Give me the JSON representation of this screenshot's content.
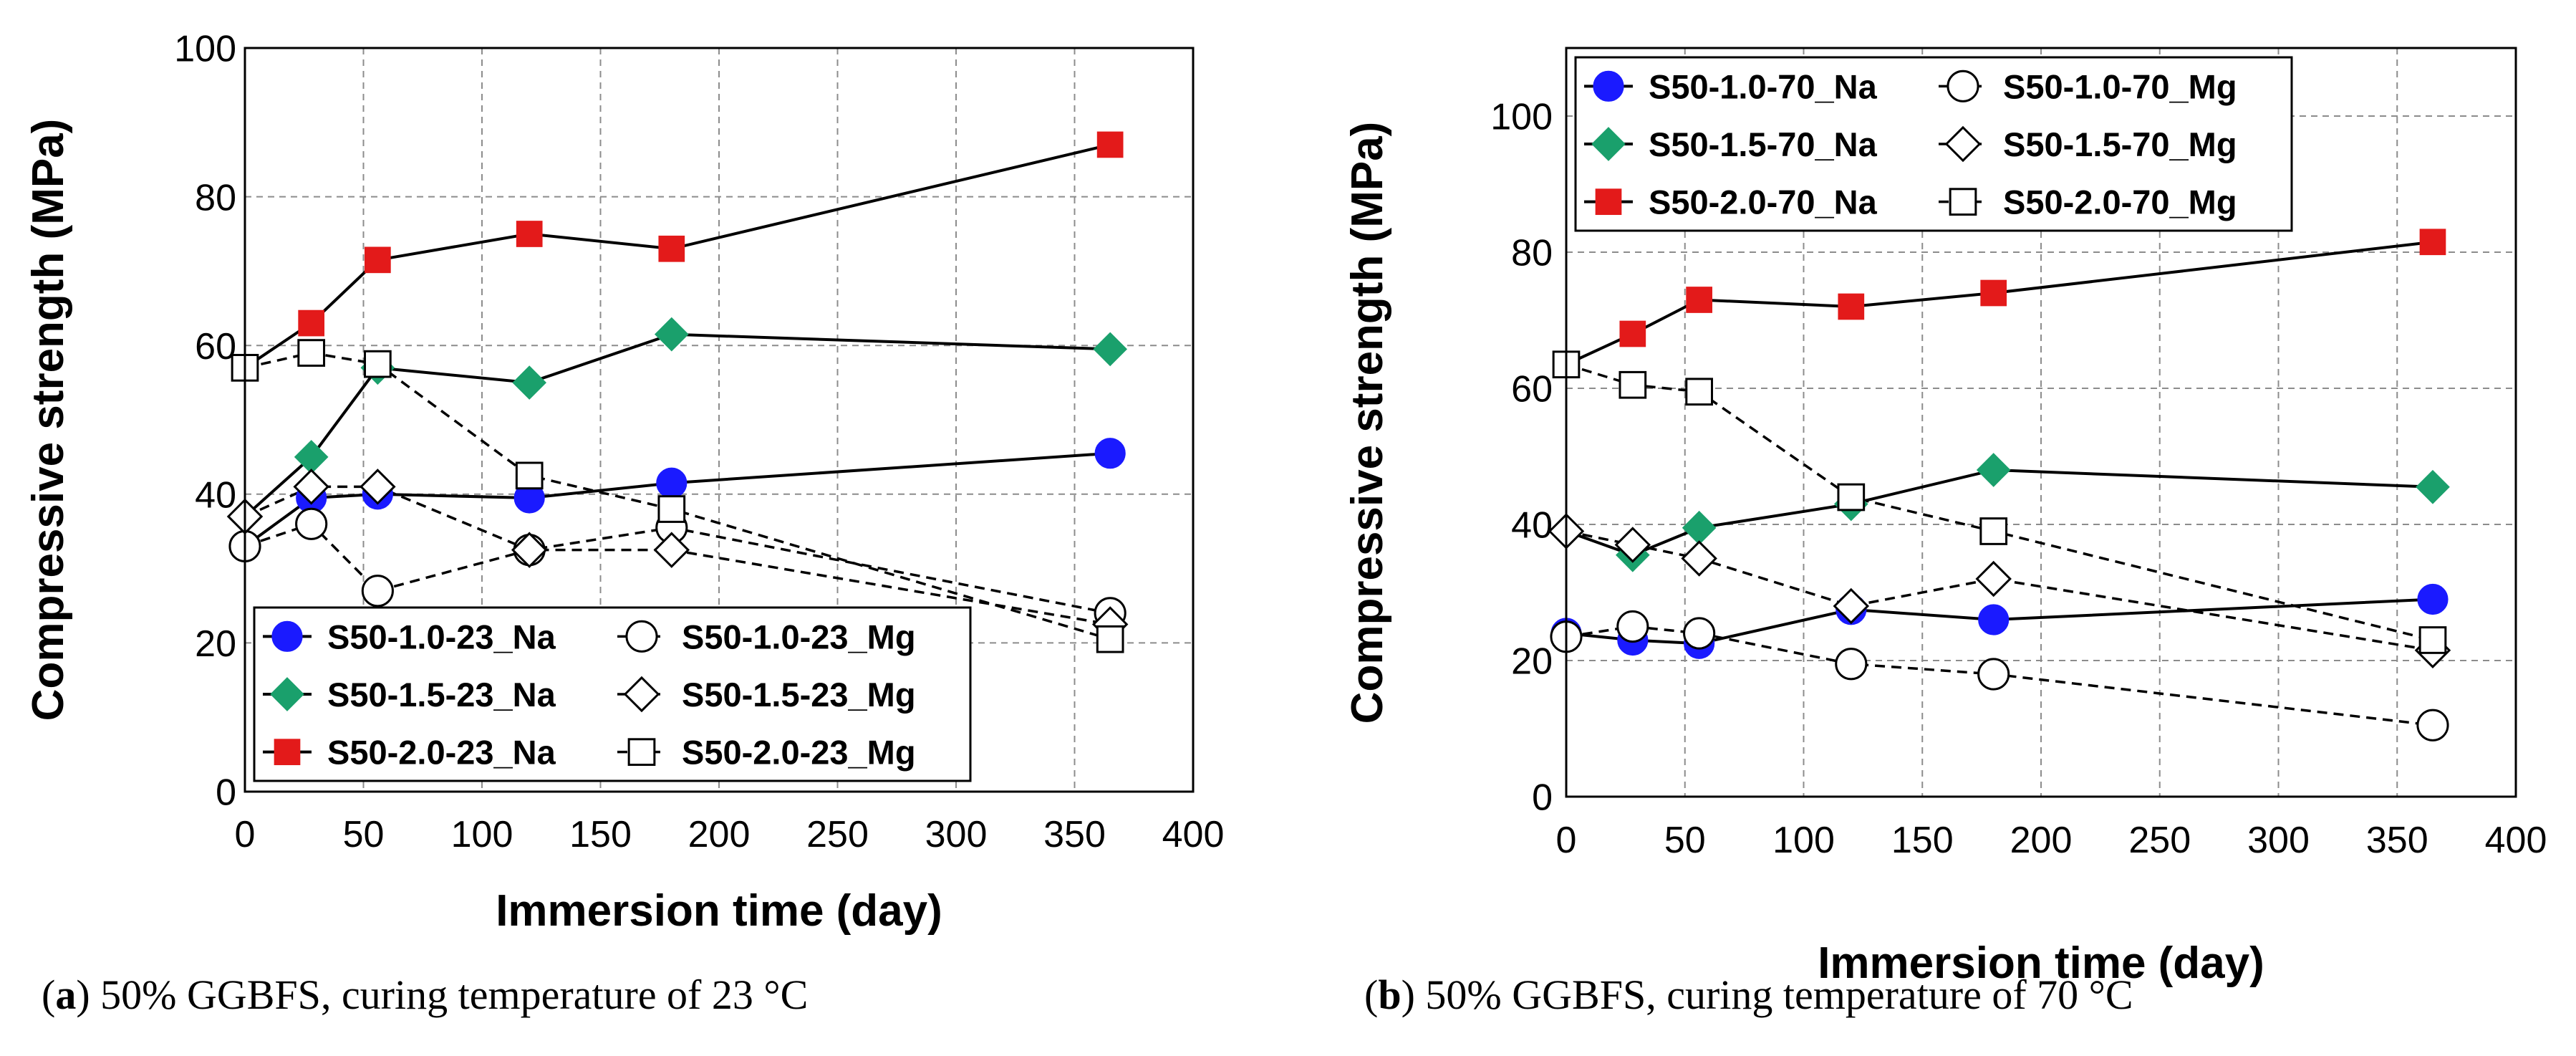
{
  "chart_data": [
    {
      "type": "line",
      "panel_label": "a",
      "caption": "50% GGBFS, curing temperature of 23 °C",
      "xlabel": "Immersion time (day)",
      "ylabel": "Compressive strength (MPa)",
      "xlim": [
        0,
        400
      ],
      "ylim": [
        0,
        100
      ],
      "xticks": [
        "0",
        "50",
        "100",
        "150",
        "200",
        "250",
        "300",
        "350",
        "400"
      ],
      "yticks": [
        "0",
        "20",
        "40",
        "60",
        "80",
        "100"
      ],
      "grid": true,
      "legend_position": "bottom-left",
      "series": [
        {
          "name": "S50-1.0-23_Na",
          "marker": "circle",
          "fill": "#1a1aff",
          "dashed": false,
          "x": [
            0,
            28,
            56,
            120,
            180,
            365
          ],
          "y": [
            33,
            39.5,
            40,
            39.5,
            41.5,
            45.5
          ]
        },
        {
          "name": "S50-1.0-23_Mg",
          "marker": "circle",
          "fill": "#ffffff",
          "dashed": true,
          "x": [
            0,
            28,
            56,
            120,
            180,
            365
          ],
          "y": [
            33,
            36,
            27,
            32.5,
            35.5,
            24
          ]
        },
        {
          "name": "S50-1.5-23_Na",
          "marker": "diamond",
          "fill": "#1aa06c",
          "dashed": false,
          "x": [
            0,
            28,
            56,
            120,
            180,
            365
          ],
          "y": [
            37,
            45,
            57,
            55,
            61.5,
            59.5
          ]
        },
        {
          "name": "S50-1.5-23_Mg",
          "marker": "diamond",
          "fill": "#ffffff",
          "dashed": true,
          "x": [
            0,
            28,
            56,
            120,
            180,
            365
          ],
          "y": [
            37,
            41,
            41,
            32.5,
            32.5,
            22.5
          ]
        },
        {
          "name": "S50-2.0-23_Na",
          "marker": "square",
          "fill": "#e31a1a",
          "dashed": false,
          "x": [
            0,
            28,
            56,
            120,
            180,
            365
          ],
          "y": [
            57,
            63,
            71.5,
            75,
            73,
            87
          ]
        },
        {
          "name": "S50-2.0-23_Mg",
          "marker": "square",
          "fill": "#ffffff",
          "dashed": true,
          "x": [
            0,
            28,
            56,
            120,
            180,
            365
          ],
          "y": [
            57,
            59,
            57.5,
            42.5,
            38,
            20.5
          ]
        }
      ]
    },
    {
      "type": "line",
      "panel_label": "b",
      "caption": "50% GGBFS, curing temperature of 70 °C",
      "xlabel": "Immersion time (day)",
      "ylabel": "Compressive strength (MPa)",
      "xlim": [
        0,
        400
      ],
      "ylim": [
        0,
        110
      ],
      "xticks": [
        "0",
        "50",
        "100",
        "150",
        "200",
        "250",
        "300",
        "350",
        "400"
      ],
      "yticks": [
        "0",
        "20",
        "40",
        "60",
        "80",
        "100"
      ],
      "grid": true,
      "legend_position": "top-left",
      "series": [
        {
          "name": "S50-1.0-70_Na",
          "marker": "circle",
          "fill": "#1a1aff",
          "dashed": false,
          "x": [
            0,
            28,
            56,
            120,
            180,
            365
          ],
          "y": [
            24,
            23,
            22.5,
            27.5,
            26,
            29
          ]
        },
        {
          "name": "S50-1.0-70_Mg",
          "marker": "circle",
          "fill": "#ffffff",
          "dashed": true,
          "x": [
            0,
            28,
            56,
            120,
            180,
            365
          ],
          "y": [
            23.5,
            25,
            24,
            19.5,
            18,
            10.5
          ]
        },
        {
          "name": "S50-1.5-70_Na",
          "marker": "diamond",
          "fill": "#1aa06c",
          "dashed": false,
          "x": [
            0,
            28,
            56,
            120,
            180,
            365
          ],
          "y": [
            39,
            35.5,
            39.5,
            43,
            48,
            45.5
          ]
        },
        {
          "name": "S50-1.5-70_Mg",
          "marker": "diamond",
          "fill": "#ffffff",
          "dashed": true,
          "x": [
            0,
            28,
            56,
            120,
            180,
            365
          ],
          "y": [
            39,
            37,
            35,
            28,
            32,
            21.5
          ]
        },
        {
          "name": "S50-2.0-70_Na",
          "marker": "square",
          "fill": "#e31a1a",
          "dashed": false,
          "x": [
            0,
            28,
            56,
            120,
            180,
            365
          ],
          "y": [
            63.5,
            68,
            73,
            72,
            74,
            81.5
          ]
        },
        {
          "name": "S50-2.0-70_Mg",
          "marker": "square",
          "fill": "#ffffff",
          "dashed": true,
          "x": [
            0,
            28,
            56,
            120,
            180,
            365
          ],
          "y": [
            63.5,
            60.5,
            59.5,
            44,
            39,
            23
          ]
        }
      ]
    }
  ]
}
